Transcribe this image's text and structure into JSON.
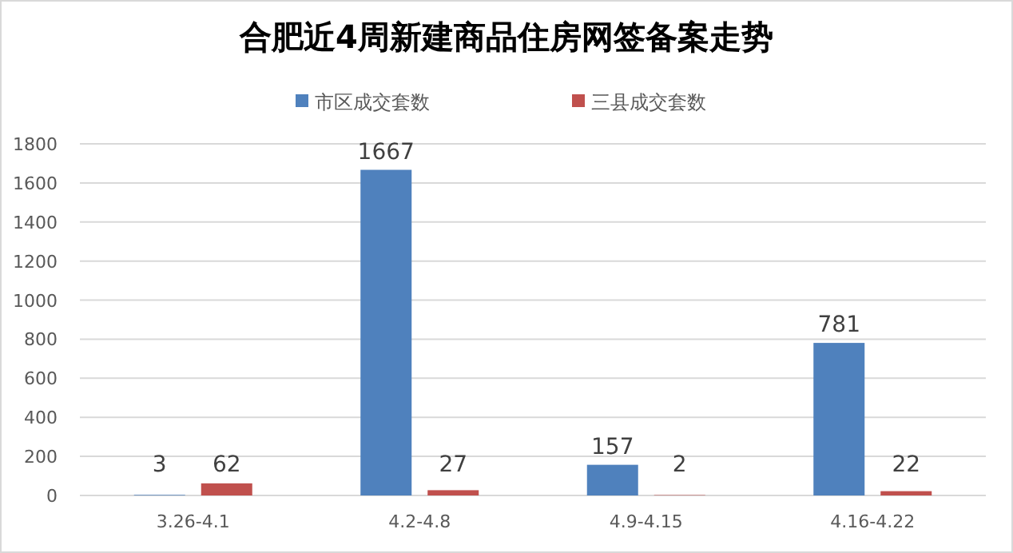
{
  "chart_data": {
    "type": "bar",
    "title": "合肥近4周新建商品住房网签备案走势",
    "categories": [
      "3.26-4.1",
      "4.2-4.8",
      "4.9-4.15",
      "4.16-4.22"
    ],
    "series": [
      {
        "name": "市区成交套数",
        "color": "#4f81bd",
        "values": [
          3,
          1667,
          157,
          781
        ]
      },
      {
        "name": "三县成交套数",
        "color": "#c0504d",
        "values": [
          62,
          27,
          2,
          22
        ]
      }
    ],
    "ylim": [
      0,
      1800
    ],
    "yticks": [
      0,
      200,
      400,
      600,
      800,
      1000,
      1200,
      1400,
      1600,
      1800
    ],
    "grid": "y",
    "legend": "top",
    "data_labels": true
  }
}
